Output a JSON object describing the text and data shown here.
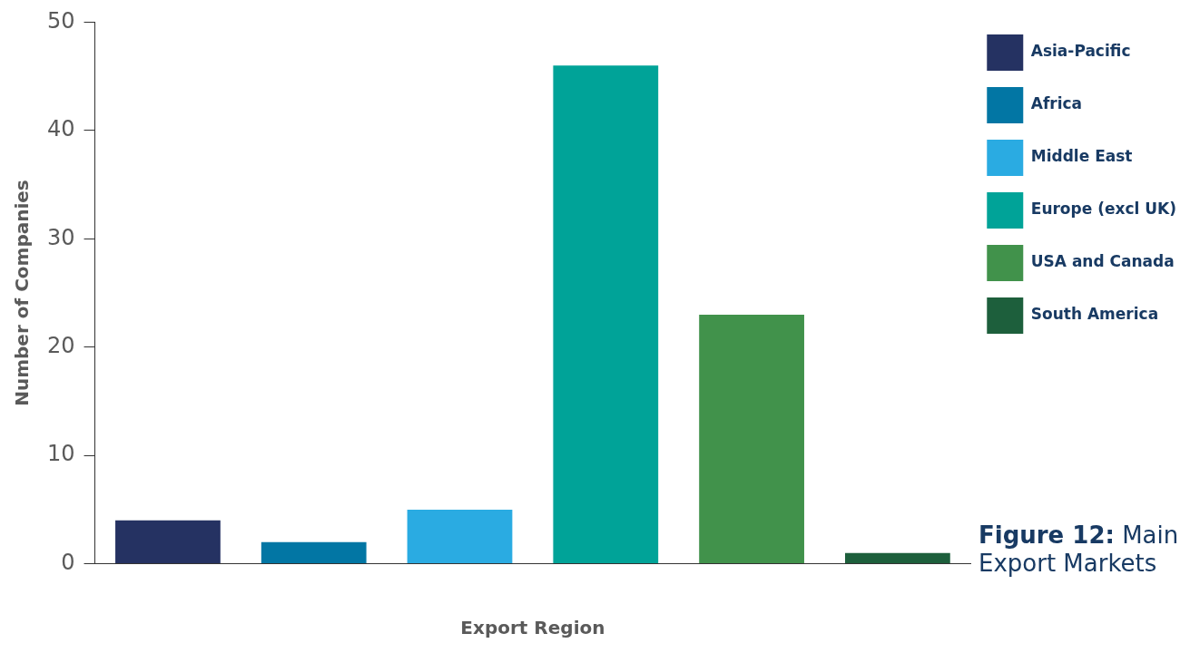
{
  "chart_data": {
    "type": "bar",
    "title": "Figure 12: Main Export Markets",
    "xlabel": "Export Region",
    "ylabel": "Number of Companies",
    "categories": [
      null,
      null,
      null,
      null,
      null,
      null
    ],
    "series": [
      {
        "name": "Asia-Pacific",
        "color": "#253262",
        "values": [
          4,
          null,
          null,
          null,
          null,
          null
        ]
      },
      {
        "name": "Africa",
        "color": "#0276a4",
        "values": [
          null,
          2,
          null,
          null,
          null,
          null
        ]
      },
      {
        "name": "Middle East",
        "color": "#2aabe2",
        "values": [
          null,
          null,
          5,
          null,
          null,
          null
        ]
      },
      {
        "name": "Europe (excl UK)",
        "color": "#00a398",
        "values": [
          null,
          null,
          null,
          46,
          null,
          null
        ]
      },
      {
        "name": "USA and Canada",
        "color": "#41924b",
        "values": [
          null,
          null,
          null,
          null,
          23,
          null
        ]
      },
      {
        "name": "South America",
        "color": "#1d5f3c",
        "values": [
          null,
          null,
          null,
          null,
          null,
          1
        ]
      }
    ],
    "ylim": [
      0,
      50
    ],
    "yticks": [
      0,
      10,
      20,
      30,
      40,
      50
    ],
    "grid": false,
    "legend": "right"
  }
}
